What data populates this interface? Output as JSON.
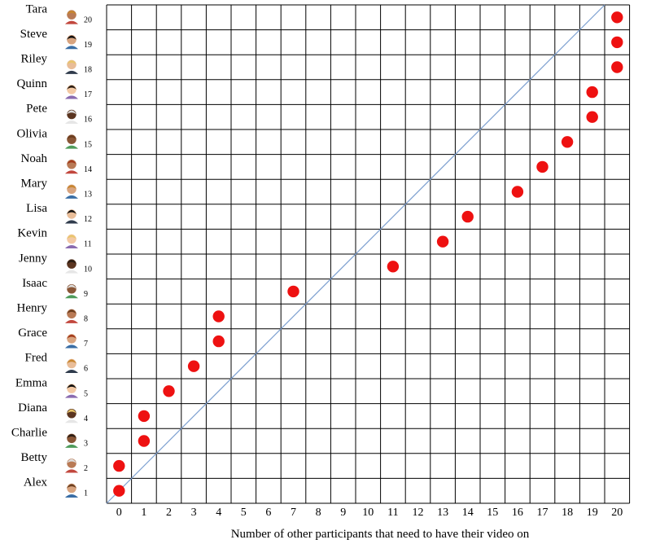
{
  "chart_data": {
    "type": "scatter",
    "title": "",
    "xlabel": "Number of other participants that need to have their video on",
    "ylabel": "",
    "xlim": [
      0,
      20
    ],
    "x_ticks": [
      "0",
      "1",
      "2",
      "3",
      "4",
      "5",
      "6",
      "7",
      "8",
      "9",
      "10",
      "11",
      "12",
      "13",
      "14",
      "15",
      "16",
      "17",
      "18",
      "19",
      "20"
    ],
    "grid": true,
    "diagonal_line": true,
    "point_color": "#ee1111",
    "line_color": "#7b9fd0",
    "grid_color": "#000000",
    "participants": [
      {
        "index": "1",
        "name": "Alex",
        "avatar": "curly-hair-man-avatar-icon",
        "threshold": 0
      },
      {
        "index": "2",
        "name": "Betty",
        "avatar": "blonde-elderly-woman-avatar-icon",
        "threshold": 0
      },
      {
        "index": "3",
        "name": "Charlie",
        "avatar": "white-hair-elderly-man-avatar-icon",
        "threshold": 1
      },
      {
        "index": "4",
        "name": "Diana",
        "avatar": "dark-hair-woman-avatar-icon",
        "threshold": 1
      },
      {
        "index": "5",
        "name": "Emma",
        "avatar": "blonde-woman-avatar-icon",
        "threshold": 2
      },
      {
        "index": "6",
        "name": "Fred",
        "avatar": "dark-skin-man-avatar-icon",
        "threshold": 3
      },
      {
        "index": "7",
        "name": "Grace",
        "avatar": "brown-hair-woman-avatar-icon",
        "threshold": 4
      },
      {
        "index": "8",
        "name": "Henry",
        "avatar": "dark-hair-man-avatar-icon",
        "threshold": 4
      },
      {
        "index": "9",
        "name": "Isaac",
        "avatar": "ginger-man-avatar-icon",
        "threshold": 7
      },
      {
        "index": "10",
        "name": "Jenny",
        "avatar": "dark-skin-woman-avatar-icon",
        "threshold": 11
      },
      {
        "index": "11",
        "name": "Kevin",
        "avatar": "curly-dark-man-avatar-icon",
        "threshold": 13
      },
      {
        "index": "12",
        "name": "Lisa",
        "avatar": "red-hair-woman-avatar-icon",
        "threshold": 14
      },
      {
        "index": "13",
        "name": "Mary",
        "avatar": "afro-woman-avatar-icon",
        "threshold": 16
      },
      {
        "index": "14",
        "name": "Noah",
        "avatar": "bearded-man-avatar-icon",
        "threshold": 17
      },
      {
        "index": "15",
        "name": "Olivia",
        "avatar": "curly-hair-woman-avatar-icon",
        "threshold": 18
      },
      {
        "index": "16",
        "name": "Pete",
        "avatar": "mustache-man-avatar-icon",
        "threshold": 19
      },
      {
        "index": "17",
        "name": "Quinn",
        "avatar": "bearded-man-avatar-icon",
        "threshold": 19
      },
      {
        "index": "18",
        "name": "Riley",
        "avatar": "brown-hair-woman-avatar-icon",
        "threshold": 20
      },
      {
        "index": "19",
        "name": "Steve",
        "avatar": "suit-man-avatar-icon",
        "threshold": 20
      },
      {
        "index": "20",
        "name": "Tara",
        "avatar": "dark-hair-woman-avatar-icon",
        "threshold": 20
      }
    ]
  }
}
